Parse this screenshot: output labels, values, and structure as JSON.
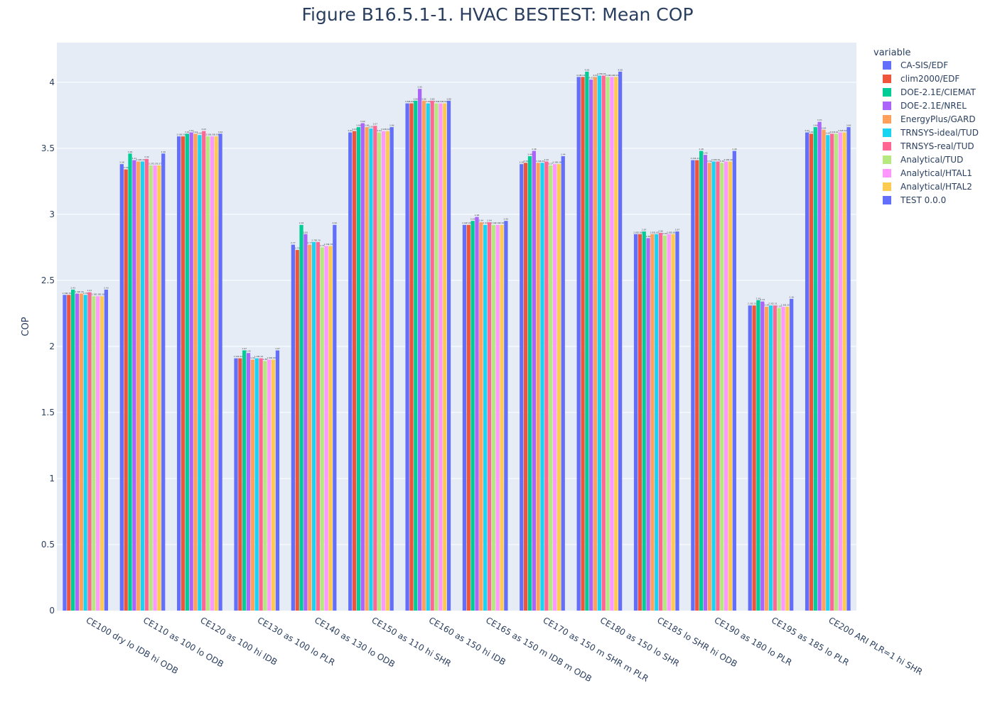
{
  "chart_data": {
    "type": "bar",
    "title": "Figure B16.5.1-1. HVAC BESTEST: Mean COP",
    "xlabel": "",
    "ylabel": "COP",
    "ylim": [
      0,
      4.3
    ],
    "yticks": [
      "0",
      "0.5",
      "1",
      "1.5",
      "2",
      "2.5",
      "3",
      "3.5",
      "4"
    ],
    "grid": true,
    "legend_title": "variable",
    "legend_position": "right",
    "categories": [
      "CE100 dry lo IDB hi ODB",
      "CE110 as 100 lo ODB",
      "CE120 as 100 hi IDB",
      "CE130 as 100 lo PLR",
      "CE140 as 130 lo ODB",
      "CE150 as 110 hi SHR",
      "CE160 as 150 hi IDB",
      "CE165 as 150 m IDB m ODB",
      "CE170 as 150 m SHR m PLR",
      "CE180 as 150 lo SHR",
      "CE185 lo SHR hi ODB",
      "CE190 as 180 lo PLR",
      "CE195 as 185 lo PLR",
      "CE200 ARI  PLR=1 hi SHR"
    ],
    "series": [
      {
        "name": "CA-SIS/EDF",
        "color": "#636efa",
        "values": [
          2.39,
          3.38,
          3.59,
          1.91,
          2.77,
          3.62,
          3.84,
          2.92,
          3.38,
          4.04,
          2.85,
          3.41,
          2.31,
          3.62
        ]
      },
      {
        "name": "clim2000/EDF",
        "color": "#ef553b",
        "values": [
          2.39,
          3.34,
          3.59,
          1.91,
          2.73,
          3.63,
          3.84,
          2.92,
          3.39,
          4.04,
          2.85,
          3.41,
          2.31,
          3.61
        ]
      },
      {
        "name": "DOE-2.1E/CIEMAT",
        "color": "#00cc96",
        "values": [
          2.43,
          3.46,
          3.61,
          1.97,
          2.92,
          3.66,
          3.86,
          2.95,
          3.44,
          4.08,
          2.87,
          3.48,
          2.35,
          3.66
        ]
      },
      {
        "name": "DOE-2.1E/NREL",
        "color": "#ab63fa",
        "values": [
          2.4,
          3.41,
          3.62,
          1.95,
          2.85,
          3.69,
          3.95,
          2.98,
          3.48,
          4.02,
          2.82,
          3.45,
          2.34,
          3.7
        ]
      },
      {
        "name": "EnergyPlus/GARD",
        "color": "#ffa15a",
        "values": [
          2.4,
          3.4,
          3.61,
          1.9,
          2.77,
          3.66,
          3.86,
          2.94,
          3.39,
          4.04,
          2.85,
          3.39,
          2.3,
          3.64
        ]
      },
      {
        "name": "TRNSYS-ideal/TUD",
        "color": "#19d3f3",
        "values": [
          2.39,
          3.4,
          3.6,
          1.91,
          2.79,
          3.65,
          3.84,
          2.92,
          3.39,
          4.05,
          2.85,
          3.4,
          2.31,
          3.6
        ]
      },
      {
        "name": "TRNSYS-real/TUD",
        "color": "#ff6692",
        "values": [
          2.41,
          3.42,
          3.63,
          1.91,
          2.79,
          3.67,
          3.86,
          2.94,
          3.4,
          4.05,
          2.86,
          3.4,
          2.31,
          3.61
        ]
      },
      {
        "name": "Analytical/TUD",
        "color": "#b6e880",
        "values": [
          2.38,
          3.37,
          3.59,
          1.89,
          2.75,
          3.62,
          3.84,
          2.92,
          3.37,
          4.04,
          2.84,
          3.39,
          2.29,
          3.61
        ]
      },
      {
        "name": "Analytical/HTAL1",
        "color": "#ff97ff",
        "values": [
          2.38,
          3.37,
          3.59,
          1.9,
          2.76,
          3.63,
          3.84,
          2.92,
          3.38,
          4.04,
          2.85,
          3.4,
          2.3,
          3.62
        ]
      },
      {
        "name": "Analytical/HTAL2",
        "color": "#fecb52",
        "values": [
          2.38,
          3.37,
          3.59,
          1.9,
          2.76,
          3.63,
          3.84,
          2.92,
          3.38,
          4.04,
          2.85,
          3.4,
          2.3,
          3.62
        ]
      },
      {
        "name": "TEST 0.0.0",
        "color": "#636efa",
        "values": [
          2.43,
          3.46,
          3.61,
          1.97,
          2.92,
          3.66,
          3.86,
          2.95,
          3.44,
          4.08,
          2.87,
          3.48,
          2.36,
          3.66
        ]
      }
    ]
  }
}
